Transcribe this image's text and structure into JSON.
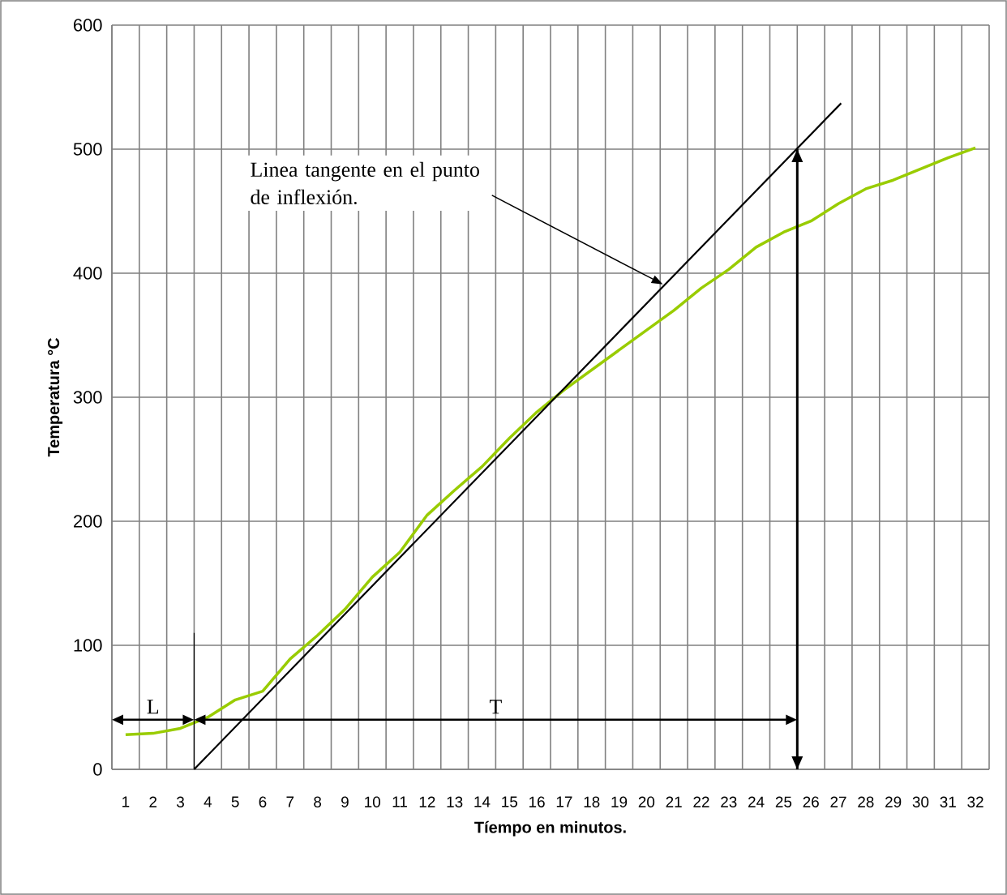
{
  "chart_data": {
    "type": "line",
    "xlabel": "Tíempo en minutos.",
    "ylabel": "Temperatura °C",
    "x": [
      1,
      2,
      3,
      4,
      5,
      6,
      7,
      8,
      9,
      10,
      11,
      12,
      13,
      14,
      15,
      16,
      17,
      18,
      19,
      20,
      21,
      22,
      23,
      24,
      25,
      26,
      27,
      28,
      29,
      30,
      31,
      32
    ],
    "series": [
      {
        "color": "#99cc00",
        "values": [
          28,
          29,
          33,
          42,
          56,
          63,
          89,
          108,
          129,
          155,
          175,
          205,
          225,
          244,
          267,
          288,
          306,
          322,
          338,
          354,
          370,
          388,
          403,
          421,
          433,
          442,
          456,
          468,
          475,
          484,
          493,
          501
        ]
      },
      {
        "type": "line",
        "color": "#000000",
        "x": [
          3.5,
          27.1
        ],
        "values": [
          0,
          537
        ]
      },
      {
        "type": "line",
        "color": "#000000",
        "x": [
          3.5,
          3.5
        ],
        "values": [
          0,
          110
        ]
      },
      {
        "type": "line",
        "color": "#000000",
        "x": [
          25.5,
          25.5
        ],
        "values": [
          0,
          500
        ]
      }
    ],
    "xlim": [
      0.5,
      32.5
    ],
    "xticks": [
      1,
      2,
      3,
      4,
      5,
      6,
      7,
      8,
      9,
      10,
      11,
      12,
      13,
      14,
      15,
      16,
      17,
      18,
      19,
      20,
      21,
      22,
      23,
      24,
      25,
      26,
      27,
      28,
      29,
      30,
      31,
      32
    ],
    "ylim": [
      0,
      600
    ],
    "yticks": [
      0,
      100,
      200,
      300,
      400,
      500,
      600
    ],
    "grid": true,
    "marker": "none",
    "line_style": "solid",
    "annotations": [
      "L",
      "T",
      "Linea tangente en el punto de inflexión."
    ]
  }
}
